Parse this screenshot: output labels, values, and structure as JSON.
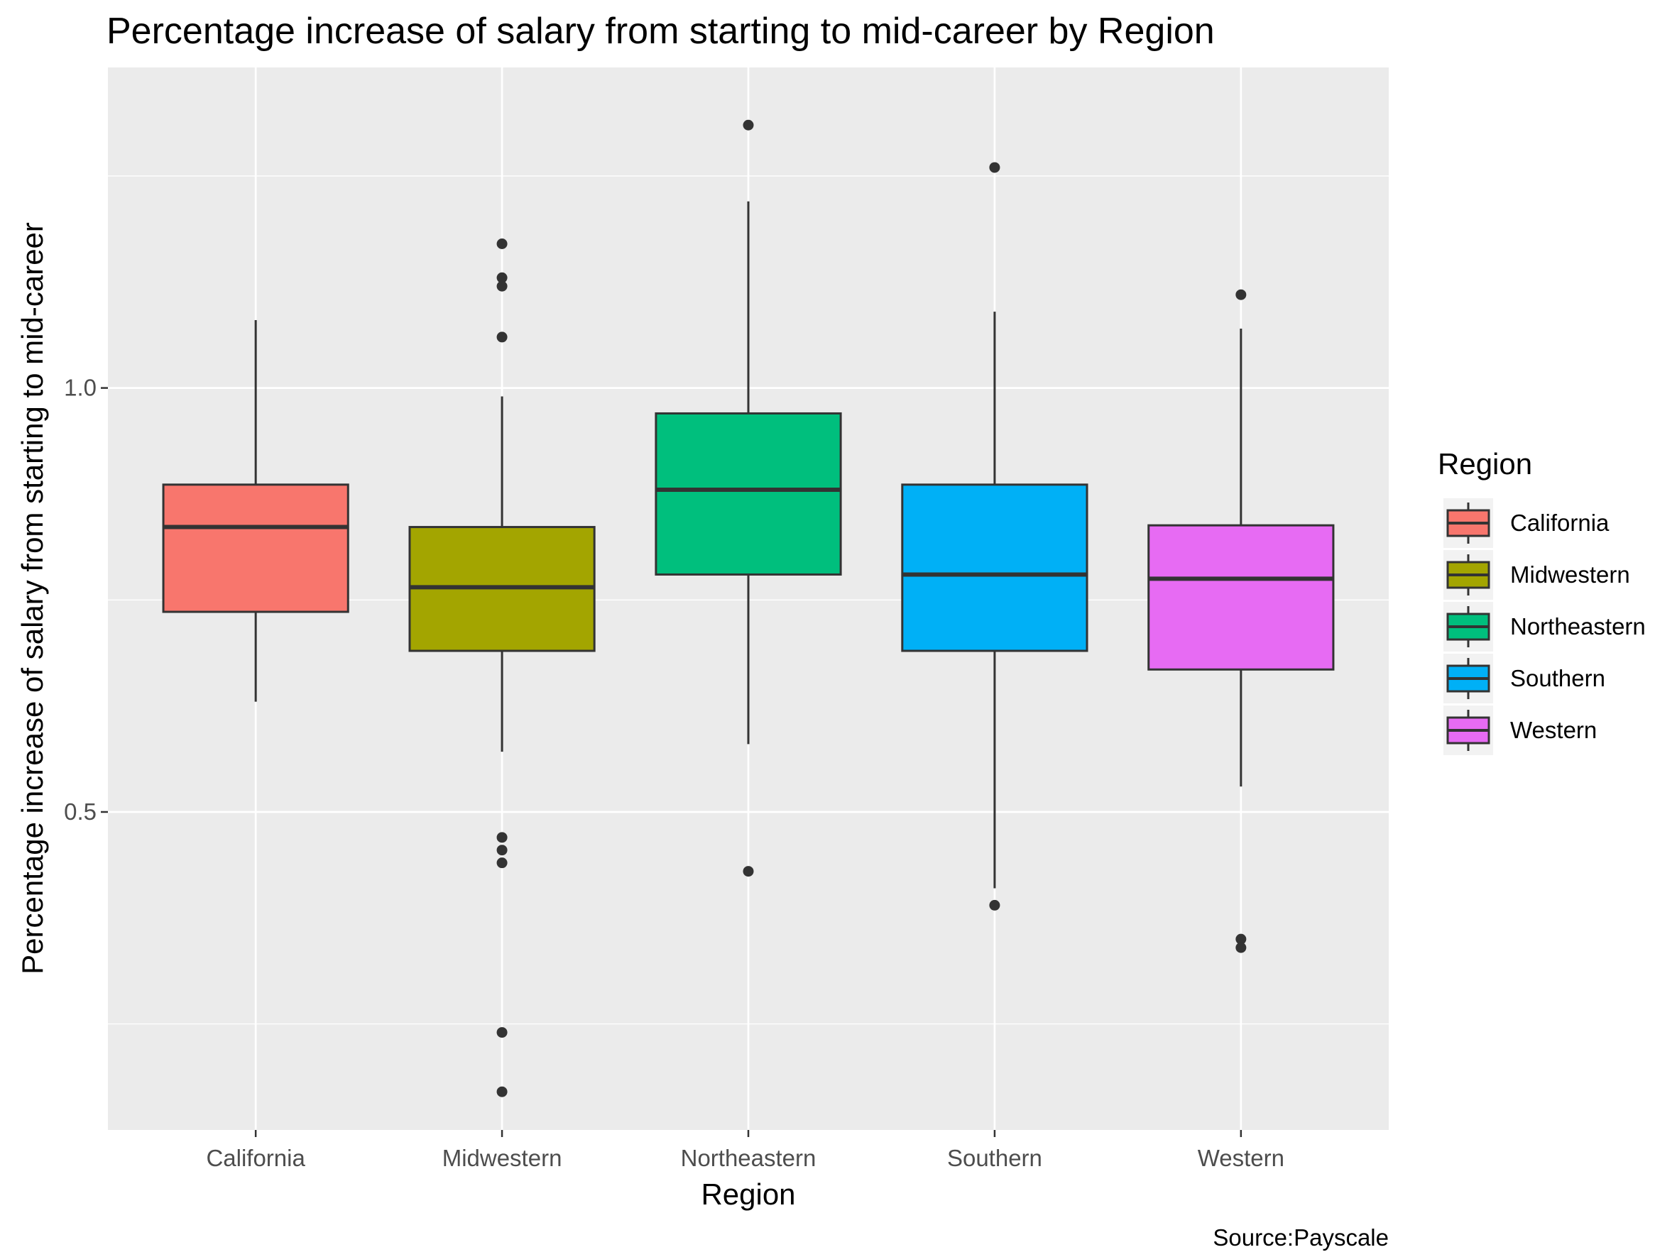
{
  "chart_data": {
    "type": "box",
    "title": "Percentage increase of salary from starting to mid-career by Region",
    "xlabel": "Region",
    "ylabel": "Percentage increase of salary from starting to mid-career",
    "caption": "Source:Payscale",
    "categories": [
      "California",
      "Midwestern",
      "Northeastern",
      "Southern",
      "Western"
    ],
    "y_ticks": [
      0.5,
      1.0
    ],
    "y_tick_labels": [
      "0.5",
      "1.0"
    ],
    "ylim": [
      0.125,
      1.378
    ],
    "grid": true,
    "legend": {
      "title": "Region",
      "position": "right",
      "entries": [
        "California",
        "Midwestern",
        "Northeastern",
        "Southern",
        "Western"
      ]
    },
    "colors": {
      "California": "#F8766D",
      "Midwestern": "#A3A500",
      "Northeastern": "#00BF7D",
      "Southern": "#00B0F6",
      "Western": "#E76BF3"
    },
    "boxes": [
      {
        "category": "California",
        "whisker_low": 0.63,
        "q1": 0.736,
        "median": 0.836,
        "q3": 0.886,
        "whisker_high": 1.08,
        "outliers": []
      },
      {
        "category": "Midwestern",
        "whisker_low": 0.571,
        "q1": 0.69,
        "median": 0.765,
        "q3": 0.836,
        "whisker_high": 0.99,
        "outliers": [
          1.17,
          1.13,
          1.12,
          1.06,
          0.47,
          0.455,
          0.44,
          0.24,
          0.17
        ]
      },
      {
        "category": "Northeastern",
        "whisker_low": 0.58,
        "q1": 0.78,
        "median": 0.88,
        "q3": 0.97,
        "whisker_high": 1.22,
        "outliers": [
          1.31,
          0.43
        ]
      },
      {
        "category": "Southern",
        "whisker_low": 0.41,
        "q1": 0.69,
        "median": 0.78,
        "q3": 0.886,
        "whisker_high": 1.09,
        "outliers": [
          1.26,
          0.39
        ]
      },
      {
        "category": "Western",
        "whisker_low": 0.53,
        "q1": 0.668,
        "median": 0.775,
        "q3": 0.838,
        "whisker_high": 1.07,
        "outliers": [
          1.11,
          0.35,
          0.34
        ]
      }
    ]
  }
}
